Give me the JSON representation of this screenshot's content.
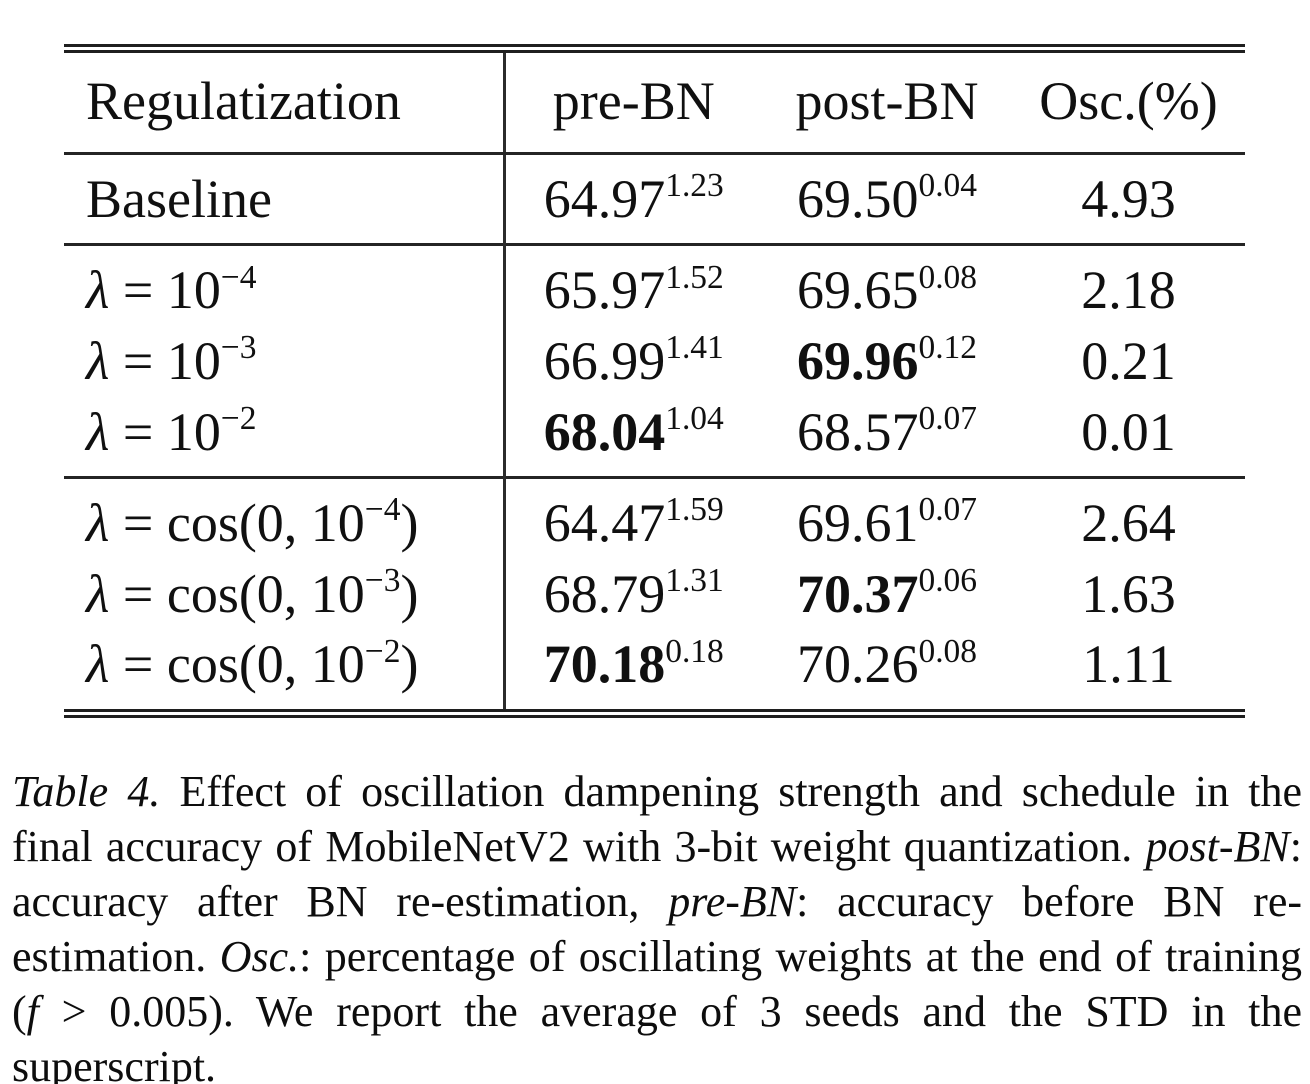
{
  "colors": {
    "background": "#ffffff",
    "text": "#101010",
    "rule": "#1f1f1f"
  },
  "table": {
    "header": [
      [
        {
          "t": "Regulatization"
        }
      ],
      [
        {
          "t": "pre-BN"
        }
      ],
      [
        {
          "t": "post-BN"
        }
      ],
      [
        {
          "t": "Osc.(%)"
        }
      ]
    ],
    "groups": [
      [
        {
          "cells": [
            [
              {
                "t": "Baseline"
              }
            ],
            [
              {
                "t": "64.97"
              },
              {
                "t": "1.23",
                "sup": true
              }
            ],
            [
              {
                "t": "69.50"
              },
              {
                "t": "0.04",
                "sup": true
              }
            ],
            [
              {
                "t": "4.93"
              }
            ]
          ]
        }
      ],
      [
        {
          "cells": [
            [
              {
                "t": "λ",
                "i": true
              },
              {
                "t": " = 10"
              },
              {
                "t": "−4",
                "sup": true
              }
            ],
            [
              {
                "t": "65.97"
              },
              {
                "t": "1.52",
                "sup": true
              }
            ],
            [
              {
                "t": "69.65"
              },
              {
                "t": "0.08",
                "sup": true
              }
            ],
            [
              {
                "t": "2.18"
              }
            ]
          ]
        },
        {
          "cells": [
            [
              {
                "t": "λ",
                "i": true
              },
              {
                "t": " = 10"
              },
              {
                "t": "−3",
                "sup": true
              }
            ],
            [
              {
                "t": "66.99"
              },
              {
                "t": "1.41",
                "sup": true
              }
            ],
            [
              {
                "t": "69.96",
                "b": true
              },
              {
                "t": "0.12",
                "sup": true
              }
            ],
            [
              {
                "t": "0.21"
              }
            ]
          ]
        },
        {
          "cells": [
            [
              {
                "t": "λ",
                "i": true
              },
              {
                "t": " = 10"
              },
              {
                "t": "−2",
                "sup": true
              }
            ],
            [
              {
                "t": "68.04",
                "b": true
              },
              {
                "t": "1.04",
                "sup": true
              }
            ],
            [
              {
                "t": "68.57"
              },
              {
                "t": "0.07",
                "sup": true
              }
            ],
            [
              {
                "t": "0.01"
              }
            ]
          ]
        }
      ],
      [
        {
          "cells": [
            [
              {
                "t": "λ",
                "i": true
              },
              {
                "t": " = cos(0, 10"
              },
              {
                "t": "−4",
                "sup": true
              },
              {
                "t": ")"
              }
            ],
            [
              {
                "t": "64.47"
              },
              {
                "t": "1.59",
                "sup": true
              }
            ],
            [
              {
                "t": "69.61"
              },
              {
                "t": "0.07",
                "sup": true
              }
            ],
            [
              {
                "t": "2.64"
              }
            ]
          ]
        },
        {
          "cells": [
            [
              {
                "t": "λ",
                "i": true
              },
              {
                "t": " = cos(0, 10"
              },
              {
                "t": "−3",
                "sup": true
              },
              {
                "t": ")"
              }
            ],
            [
              {
                "t": "68.79"
              },
              {
                "t": "1.31",
                "sup": true
              }
            ],
            [
              {
                "t": "70.37",
                "b": true
              },
              {
                "t": "0.06",
                "sup": true
              }
            ],
            [
              {
                "t": "1.63"
              }
            ]
          ]
        },
        {
          "cells": [
            [
              {
                "t": "λ",
                "i": true
              },
              {
                "t": " = cos(0, 10"
              },
              {
                "t": "−2",
                "sup": true
              },
              {
                "t": ")"
              }
            ],
            [
              {
                "t": "70.18",
                "b": true
              },
              {
                "t": "0.18",
                "sup": true
              }
            ],
            [
              {
                "t": "70.26"
              },
              {
                "t": "0.08",
                "sup": true
              }
            ],
            [
              {
                "t": "1.11"
              }
            ]
          ]
        }
      ]
    ]
  },
  "caption": {
    "segments": [
      {
        "t": "Table 4.",
        "i": true
      },
      {
        "t": " Effect of oscillation dampening strength and schedule in the final accuracy of MobileNetV2 with 3-bit weight quantization. "
      },
      {
        "t": "post-BN",
        "i": true
      },
      {
        "t": ": accuracy after BN re-estimation, "
      },
      {
        "t": "pre-BN",
        "i": true
      },
      {
        "t": ": accuracy before BN re-estimation. "
      },
      {
        "t": "Osc.",
        "i": true
      },
      {
        "t": ": percentage of oscillating weights at the end of training ("
      },
      {
        "t": "f",
        "i": true
      },
      {
        "t": " > 0.005). We report the average of 3 seeds and the STD in the superscript."
      }
    ]
  }
}
